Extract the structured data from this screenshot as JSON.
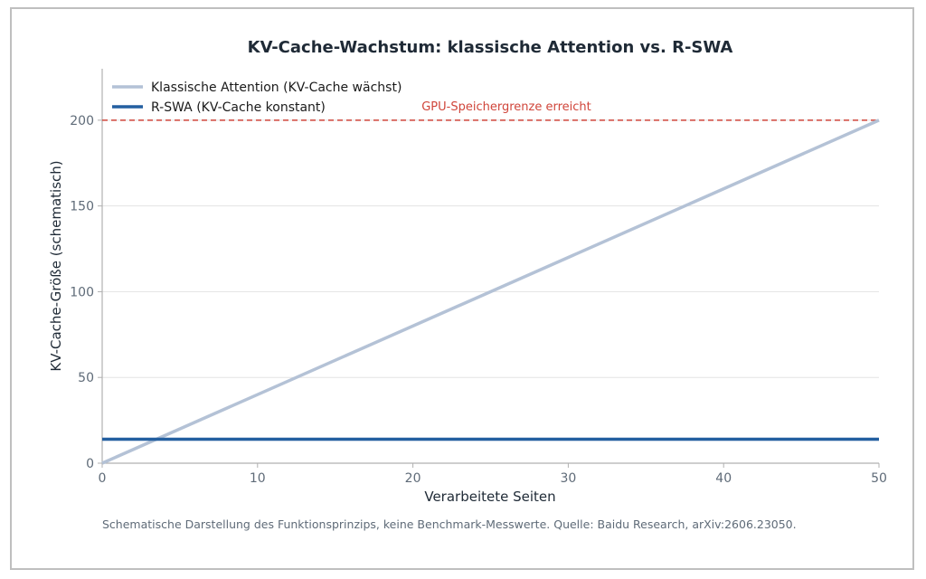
{
  "chart_data": {
    "type": "line",
    "title": "KV-Cache-Wachstum: klassische Attention vs. R-SWA",
    "xlabel": "Verarbeitete Seiten",
    "ylabel": "KV-Cache-Größe (schematisch)",
    "xlim": [
      0,
      50
    ],
    "ylim": [
      0,
      230
    ],
    "xticks": [
      0,
      10,
      20,
      30,
      40,
      50
    ],
    "yticks": [
      0,
      50,
      100,
      150,
      200
    ],
    "grid": "horizontal",
    "legend_position": "top-left",
    "series": [
      {
        "name": "Klassische Attention (KV-Cache wächst)",
        "color": "#b4c2d6",
        "x": [
          0,
          50
        ],
        "y": [
          0,
          200
        ]
      },
      {
        "name": "R-SWA (KV-Cache konstant)",
        "color": "#235fa0",
        "x": [
          0,
          50
        ],
        "y": [
          14,
          14
        ]
      }
    ],
    "threshold": {
      "y": 200,
      "label": "GPU-Speichergrenze erreicht",
      "color": "#d0453a"
    },
    "caption": "Schematische Darstellung des Funktionsprinzips, keine Benchmark-Messwerte. Quelle: Baidu Research, arXiv:2606.23050."
  }
}
